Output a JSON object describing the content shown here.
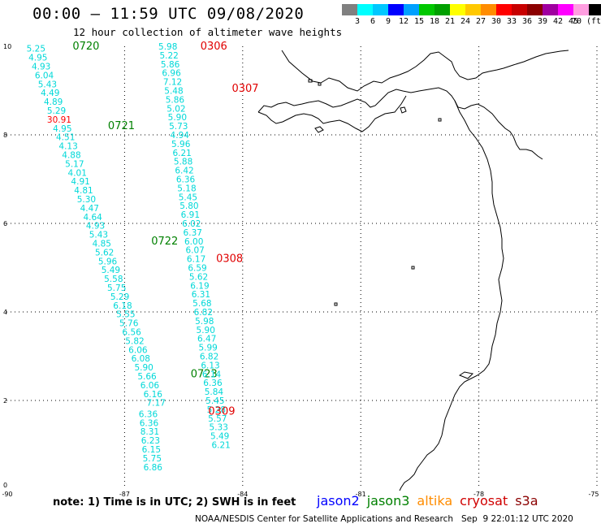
{
  "header": {
    "title": "00:00 – 11:59 UTC 09/08/2020",
    "subtitle": "12 hour collection of altimeter wave heights"
  },
  "legend": {
    "colors": [
      "#808080",
      "#00ffff",
      "#00c8ff",
      "#0000ff",
      "#00a0ff",
      "#00c800",
      "#00a000",
      "#ffff00",
      "#ffc800",
      "#ff8c00",
      "#ff0000",
      "#c80000",
      "#8b0000",
      "#a000a0",
      "#ff00ff",
      "#ff9ee0",
      "#000000"
    ],
    "labels": [
      "3",
      "6",
      "9",
      "12",
      "15",
      "18",
      "21",
      "24",
      "27",
      "30",
      "33",
      "36",
      "39",
      "42",
      "45",
      "70 (ft)"
    ]
  },
  "axes": {
    "x_ticks": [
      "-90",
      "-87",
      "-84",
      "-81",
      "-78",
      "-75"
    ],
    "y_ticks": [
      "10",
      "8",
      "6",
      "4",
      "2",
      "0"
    ]
  },
  "map_data": {
    "lon_range": [
      -90,
      -75
    ],
    "lat_range": [
      0,
      10
    ],
    "tracks": [
      {
        "satellite": "jason3",
        "labels": [
          {
            "lat": 10.0,
            "lon": -88.9,
            "text": "0720",
            "color": "#008000"
          },
          {
            "lat": 8.2,
            "lon": -88.0,
            "text": "0721",
            "color": "#008000"
          },
          {
            "lat": 5.6,
            "lon": -86.9,
            "text": "0722",
            "color": "#008000"
          },
          {
            "lat": 2.6,
            "lon": -85.9,
            "text": "0723",
            "color": "#008000"
          }
        ],
        "points": [
          {
            "lat": 9.95,
            "lon": -89.25,
            "swh": "5.25"
          },
          {
            "lat": 9.75,
            "lon": -89.2,
            "swh": "4.95"
          },
          {
            "lat": 9.55,
            "lon": -89.12,
            "swh": "4.93"
          },
          {
            "lat": 9.35,
            "lon": -89.04,
            "swh": "6.04"
          },
          {
            "lat": 9.15,
            "lon": -88.96,
            "swh": "5.43"
          },
          {
            "lat": 8.95,
            "lon": -88.89,
            "swh": "4.49"
          },
          {
            "lat": 8.75,
            "lon": -88.81,
            "swh": "4.89"
          },
          {
            "lat": 8.55,
            "lon": -88.73,
            "swh": "5.29"
          },
          {
            "lat": 8.35,
            "lon": -88.66,
            "swh": "30.91",
            "color": "#ff0000"
          },
          {
            "lat": 8.15,
            "lon": -88.58,
            "swh": "4.95"
          },
          {
            "lat": 7.95,
            "lon": -88.5,
            "swh": "4.51"
          },
          {
            "lat": 7.75,
            "lon": -88.43,
            "swh": "4.13"
          },
          {
            "lat": 7.55,
            "lon": -88.35,
            "swh": "4.88"
          },
          {
            "lat": 7.35,
            "lon": -88.27,
            "swh": "5.17"
          },
          {
            "lat": 7.15,
            "lon": -88.2,
            "swh": "4.01"
          },
          {
            "lat": 6.95,
            "lon": -88.12,
            "swh": "4.91"
          },
          {
            "lat": 6.75,
            "lon": -88.04,
            "swh": "4.81"
          },
          {
            "lat": 6.55,
            "lon": -87.97,
            "swh": "5.30"
          },
          {
            "lat": 6.35,
            "lon": -87.89,
            "swh": "4.47"
          },
          {
            "lat": 6.15,
            "lon": -87.81,
            "swh": "4.64"
          },
          {
            "lat": 5.95,
            "lon": -87.74,
            "swh": "4.93"
          },
          {
            "lat": 5.75,
            "lon": -87.66,
            "swh": "5.43"
          },
          {
            "lat": 5.55,
            "lon": -87.58,
            "swh": "4.85"
          },
          {
            "lat": 5.35,
            "lon": -87.51,
            "swh": "5.62"
          },
          {
            "lat": 5.15,
            "lon": -87.43,
            "swh": "5.96"
          },
          {
            "lat": 4.95,
            "lon": -87.35,
            "swh": "5.49"
          },
          {
            "lat": 4.75,
            "lon": -87.28,
            "swh": "5.58"
          },
          {
            "lat": 4.55,
            "lon": -87.2,
            "swh": "5.75"
          },
          {
            "lat": 4.35,
            "lon": -87.12,
            "swh": "5.29"
          },
          {
            "lat": 4.15,
            "lon": -87.05,
            "swh": "6.18"
          },
          {
            "lat": 3.95,
            "lon": -86.97,
            "swh": "5.55"
          },
          {
            "lat": 3.75,
            "lon": -86.89,
            "swh": "5.76"
          },
          {
            "lat": 3.55,
            "lon": -86.82,
            "swh": "6.56"
          },
          {
            "lat": 3.35,
            "lon": -86.74,
            "swh": "5.82"
          },
          {
            "lat": 3.15,
            "lon": -86.66,
            "swh": "6.06"
          },
          {
            "lat": 2.95,
            "lon": -86.59,
            "swh": "6.08"
          },
          {
            "lat": 2.75,
            "lon": -86.51,
            "swh": "5.90"
          },
          {
            "lat": 2.55,
            "lon": -86.43,
            "swh": "5.66"
          },
          {
            "lat": 2.35,
            "lon": -86.36,
            "swh": "6.06"
          },
          {
            "lat": 2.15,
            "lon": -86.28,
            "swh": "6.16"
          },
          {
            "lat": 1.95,
            "lon": -86.2,
            "swh": "7.17"
          }
        ]
      },
      {
        "satellite": "cryosat",
        "labels": [
          {
            "lat": 10.0,
            "lon": -85.9,
            "text": "0306",
            "color": "#e00000"
          },
          {
            "lat": 9.05,
            "lon": -85.1,
            "text": "0307",
            "color": "#e00000"
          },
          {
            "lat": 5.2,
            "lon": -85.5,
            "text": "0308",
            "color": "#e00000"
          },
          {
            "lat": 1.75,
            "lon": -85.7,
            "text": "0309",
            "color": "#e00000"
          }
        ],
        "points": [
          {
            "lat": 10.0,
            "lon": -85.9,
            "swh": "5.98"
          },
          {
            "lat": 9.8,
            "lon": -85.87,
            "swh": "5.22"
          },
          {
            "lat": 9.6,
            "lon": -85.84,
            "swh": "5.86"
          },
          {
            "lat": 9.4,
            "lon": -85.81,
            "swh": "6.96"
          },
          {
            "lat": 9.2,
            "lon": -85.78,
            "swh": "7.12"
          },
          {
            "lat": 9.0,
            "lon": -85.75,
            "swh": "5.48"
          },
          {
            "lat": 8.8,
            "lon": -85.72,
            "swh": "5.86"
          },
          {
            "lat": 8.6,
            "lon": -85.69,
            "swh": "5.02"
          },
          {
            "lat": 8.4,
            "lon": -85.66,
            "swh": "5.90"
          },
          {
            "lat": 8.2,
            "lon": -85.63,
            "swh": "5.73"
          },
          {
            "lat": 8.0,
            "lon": -85.6,
            "swh": "4.94"
          },
          {
            "lat": 7.8,
            "lon": -85.57,
            "swh": "5.96"
          },
          {
            "lat": 7.6,
            "lon": -85.54,
            "swh": "6.21"
          },
          {
            "lat": 7.4,
            "lon": -85.51,
            "swh": "5.88"
          },
          {
            "lat": 7.2,
            "lon": -85.48,
            "swh": "6.42"
          },
          {
            "lat": 7.0,
            "lon": -85.45,
            "swh": "6.36"
          },
          {
            "lat": 6.8,
            "lon": -85.42,
            "swh": "5.18"
          },
          {
            "lat": 6.6,
            "lon": -85.39,
            "swh": "5.45"
          },
          {
            "lat": 6.4,
            "lon": -85.36,
            "swh": "5.80"
          },
          {
            "lat": 6.2,
            "lon": -85.33,
            "swh": "6.91"
          },
          {
            "lat": 6.0,
            "lon": -85.3,
            "swh": "6.02"
          },
          {
            "lat": 5.8,
            "lon": -85.27,
            "swh": "6.37"
          },
          {
            "lat": 5.6,
            "lon": -85.24,
            "swh": "6.00"
          },
          {
            "lat": 5.4,
            "lon": -85.21,
            "swh": "6.07"
          },
          {
            "lat": 5.2,
            "lon": -85.18,
            "swh": "6.17"
          },
          {
            "lat": 5.0,
            "lon": -85.15,
            "swh": "6.59"
          },
          {
            "lat": 4.8,
            "lon": -85.12,
            "swh": "5.62"
          },
          {
            "lat": 4.6,
            "lon": -85.09,
            "swh": "6.19"
          },
          {
            "lat": 4.4,
            "lon": -85.06,
            "swh": "6.31"
          },
          {
            "lat": 4.2,
            "lon": -85.03,
            "swh": "5.68"
          },
          {
            "lat": 4.0,
            "lon": -85.0,
            "swh": "6.82"
          },
          {
            "lat": 3.8,
            "lon": -84.97,
            "swh": "5.98"
          },
          {
            "lat": 3.6,
            "lon": -84.94,
            "swh": "5.90"
          },
          {
            "lat": 3.4,
            "lon": -84.91,
            "swh": "6.47"
          },
          {
            "lat": 3.2,
            "lon": -84.88,
            "swh": "5.99"
          },
          {
            "lat": 3.0,
            "lon": -84.85,
            "swh": "6.82"
          },
          {
            "lat": 2.8,
            "lon": -84.82,
            "swh": "6.13"
          },
          {
            "lat": 2.6,
            "lon": -84.79,
            "swh": "6.14"
          },
          {
            "lat": 2.4,
            "lon": -84.76,
            "swh": "6.36"
          },
          {
            "lat": 2.2,
            "lon": -84.73,
            "swh": "5.84"
          },
          {
            "lat": 2.0,
            "lon": -84.7,
            "swh": "5.45"
          },
          {
            "lat": 1.8,
            "lon": -84.67,
            "swh": "5.28"
          },
          {
            "lat": 1.6,
            "lon": -84.64,
            "swh": "5.57"
          },
          {
            "lat": 1.4,
            "lon": -84.61,
            "swh": "5.33"
          },
          {
            "lat": 1.2,
            "lon": -84.58,
            "swh": "5.49"
          },
          {
            "lat": 1.0,
            "lon": -84.55,
            "swh": "6.21"
          }
        ]
      },
      {
        "satellite": "jason3-south",
        "labels": [],
        "points": [
          {
            "lat": 1.7,
            "lon": -86.4,
            "swh": "6.36"
          },
          {
            "lat": 1.5,
            "lon": -86.38,
            "swh": "6.36"
          },
          {
            "lat": 1.3,
            "lon": -86.36,
            "swh": "8.31"
          },
          {
            "lat": 1.1,
            "lon": -86.34,
            "swh": "6.23"
          },
          {
            "lat": 0.9,
            "lon": -86.32,
            "swh": "6.15"
          },
          {
            "lat": 0.7,
            "lon": -86.3,
            "swh": "5.75"
          },
          {
            "lat": 0.5,
            "lon": -86.28,
            "swh": "6.86"
          }
        ]
      }
    ]
  },
  "footer": {
    "note": "note: 1) Time is in UTC; 2) SWH is in feet",
    "satellites": [
      {
        "name": "jason2",
        "color": "#0000ff"
      },
      {
        "name": "jason3",
        "color": "#008000"
      },
      {
        "name": "altika",
        "color": "#ff8c00"
      },
      {
        "name": "cryosat",
        "color": "#d00000"
      },
      {
        "name": "s3a",
        "color": "#8b0000"
      }
    ],
    "credit": "NOAA/NESDIS Center for Satellite Applications and Research   Sep  9 22:01:12 UTC 2020"
  }
}
